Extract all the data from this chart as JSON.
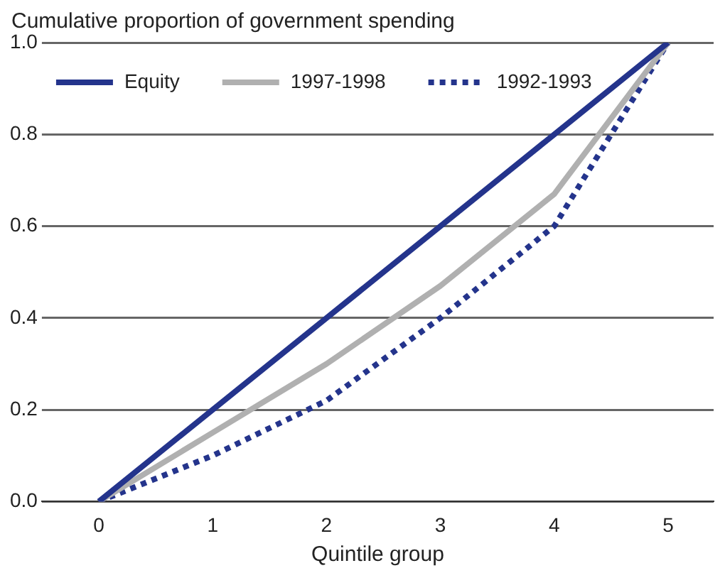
{
  "chart_data": {
    "type": "line",
    "ylabel": "Cumulative proportion of government spending",
    "xlabel": "Quintile group",
    "x": [
      0,
      1,
      2,
      3,
      4,
      5
    ],
    "xlim": [
      -0.5,
      5.4
    ],
    "xticks": [
      0,
      1,
      2,
      3,
      4,
      5
    ],
    "ylim": [
      0,
      1
    ],
    "yticks": [
      {
        "value": 0,
        "label": "0.0"
      },
      {
        "value": 0.2,
        "label": "0.2"
      },
      {
        "value": 0.4,
        "label": "0.4"
      },
      {
        "value": 0.6,
        "label": "0.6"
      },
      {
        "value": 0.8,
        "label": "0.8"
      },
      {
        "value": 1,
        "label": "1.0"
      }
    ],
    "grid": "y",
    "legend": "top left",
    "marker": "none",
    "series": [
      {
        "name": "Equity",
        "color": "#24348c",
        "values": [
          0,
          0.2,
          0.4,
          0.6,
          0.8,
          1.0
        ],
        "line_style": "solid"
      },
      {
        "name": "1997-1998",
        "color": "#b0b0b0",
        "values": [
          0,
          0.15,
          0.3,
          0.47,
          0.67,
          1.0
        ],
        "line_style": "solid"
      },
      {
        "name": "1992-1993",
        "color": "#24348c",
        "values": [
          0,
          0.1,
          0.22,
          0.4,
          0.6,
          1.0
        ],
        "line_style": "dotted"
      }
    ]
  }
}
